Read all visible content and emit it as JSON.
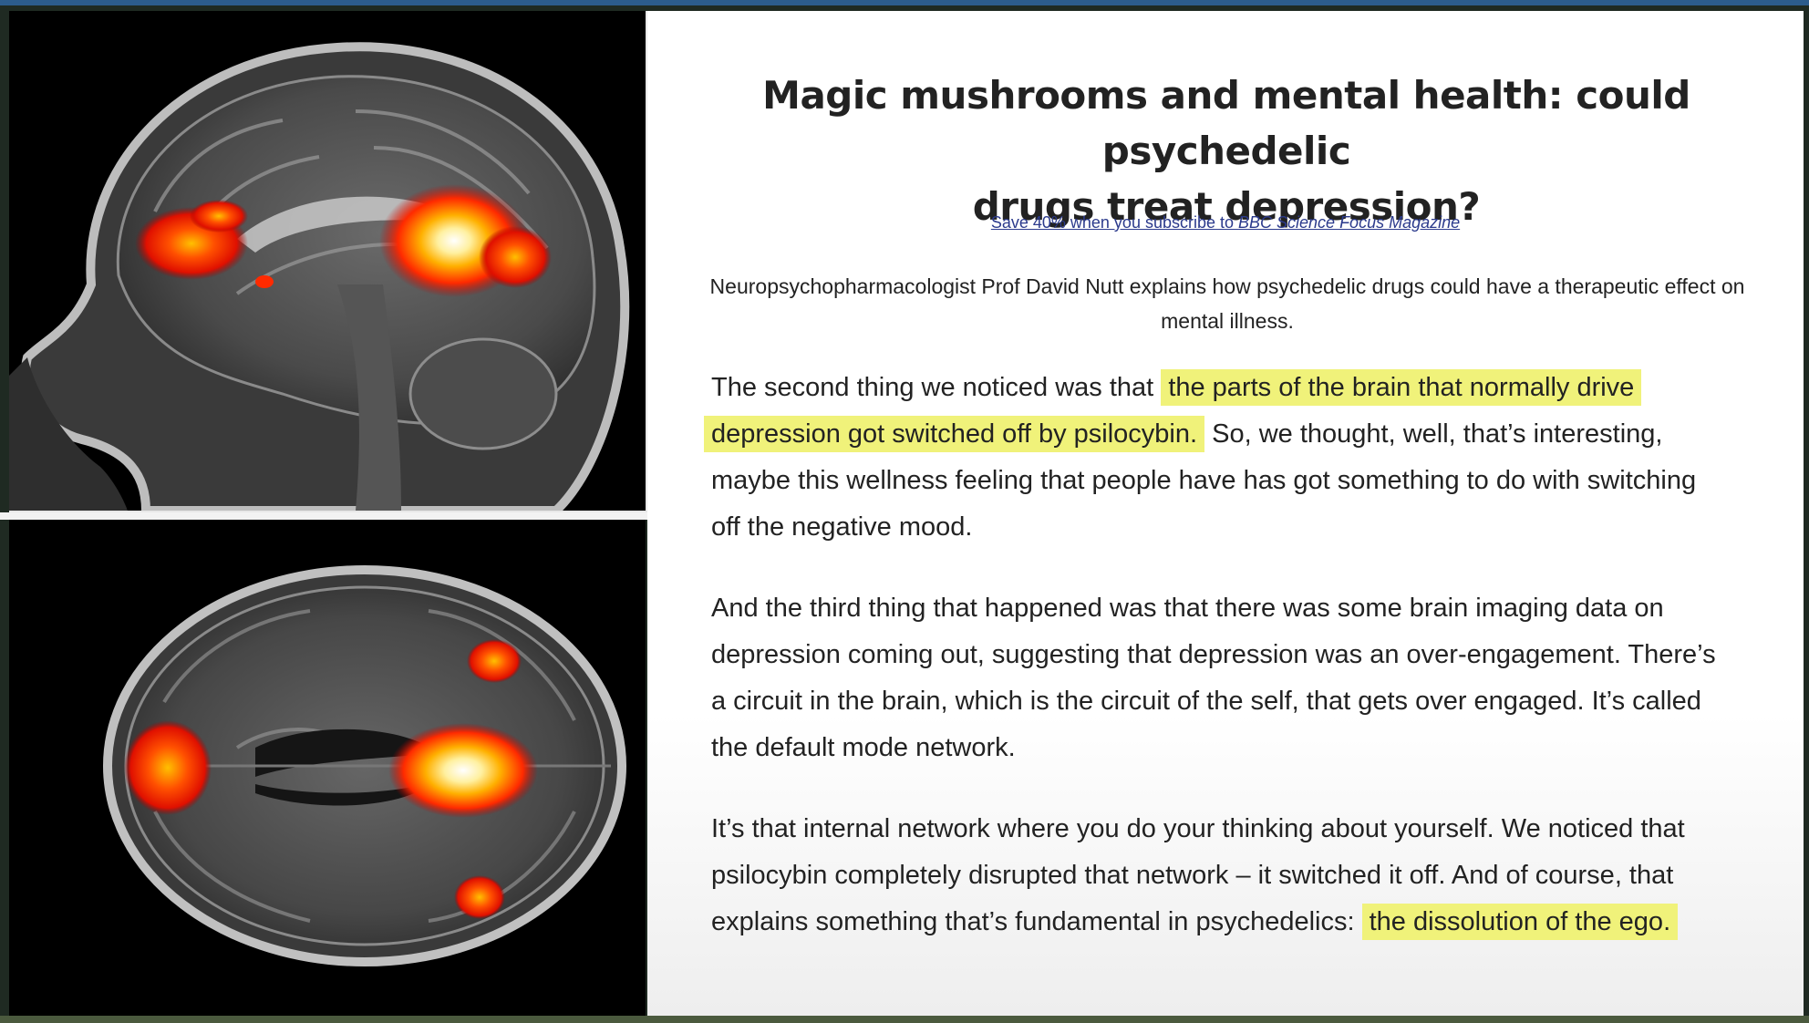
{
  "article": {
    "headline_line1": "Magic mushrooms and mental health: could psychedelic",
    "headline_line2": "drugs treat depression?",
    "promo_prefix": "Save 40% when you subscribe to ",
    "promo_magazine": "BBC Science Focus Magazine",
    "standfirst_line1": "Neuropsychopharmacologist Prof David Nutt explains how psychedelic drugs could have a therapeutic effect on",
    "standfirst_line2": "mental illness.",
    "paragraph1": {
      "l1_plain": "The second thing we noticed was that ",
      "l1_highlight": "the parts of the brain that normally drive",
      "l2_highlight": "depression got switched off by psilocybin.",
      "l2_plain": " So, we thought, well, that’s interesting,",
      "l3": "maybe this wellness feeling that people have has got something to do with switching",
      "l4": "off the negative mood."
    },
    "paragraph2": {
      "l1": "And the third thing that happened was that there was some brain imaging data on",
      "l2": "depression coming out, suggesting that depression was an over-engagement. There’s",
      "l3": "a circuit in the brain, which is the circuit of the self, that gets over engaged. It’s called",
      "l4": "the default mode network."
    },
    "paragraph3": {
      "l1": "It’s that internal network where you do your thinking about yourself. We noticed that",
      "l2": "psilocybin completely disrupted that network – it switched it off. And of course, that",
      "l3_plain": "explains something that’s fundamental in psychedelics: ",
      "l3_highlight": "the dissolution of the ego."
    }
  },
  "colors": {
    "highlight": "#f0f27a",
    "link": "#2b3a8c",
    "activation_hot": "#ffffff",
    "activation_mid": "#ffb000",
    "activation_low": "#ff2000"
  },
  "images": {
    "top_scan": "sagittal-brain-mri-with-activation",
    "bottom_scan": "axial-brain-mri-with-activation"
  }
}
